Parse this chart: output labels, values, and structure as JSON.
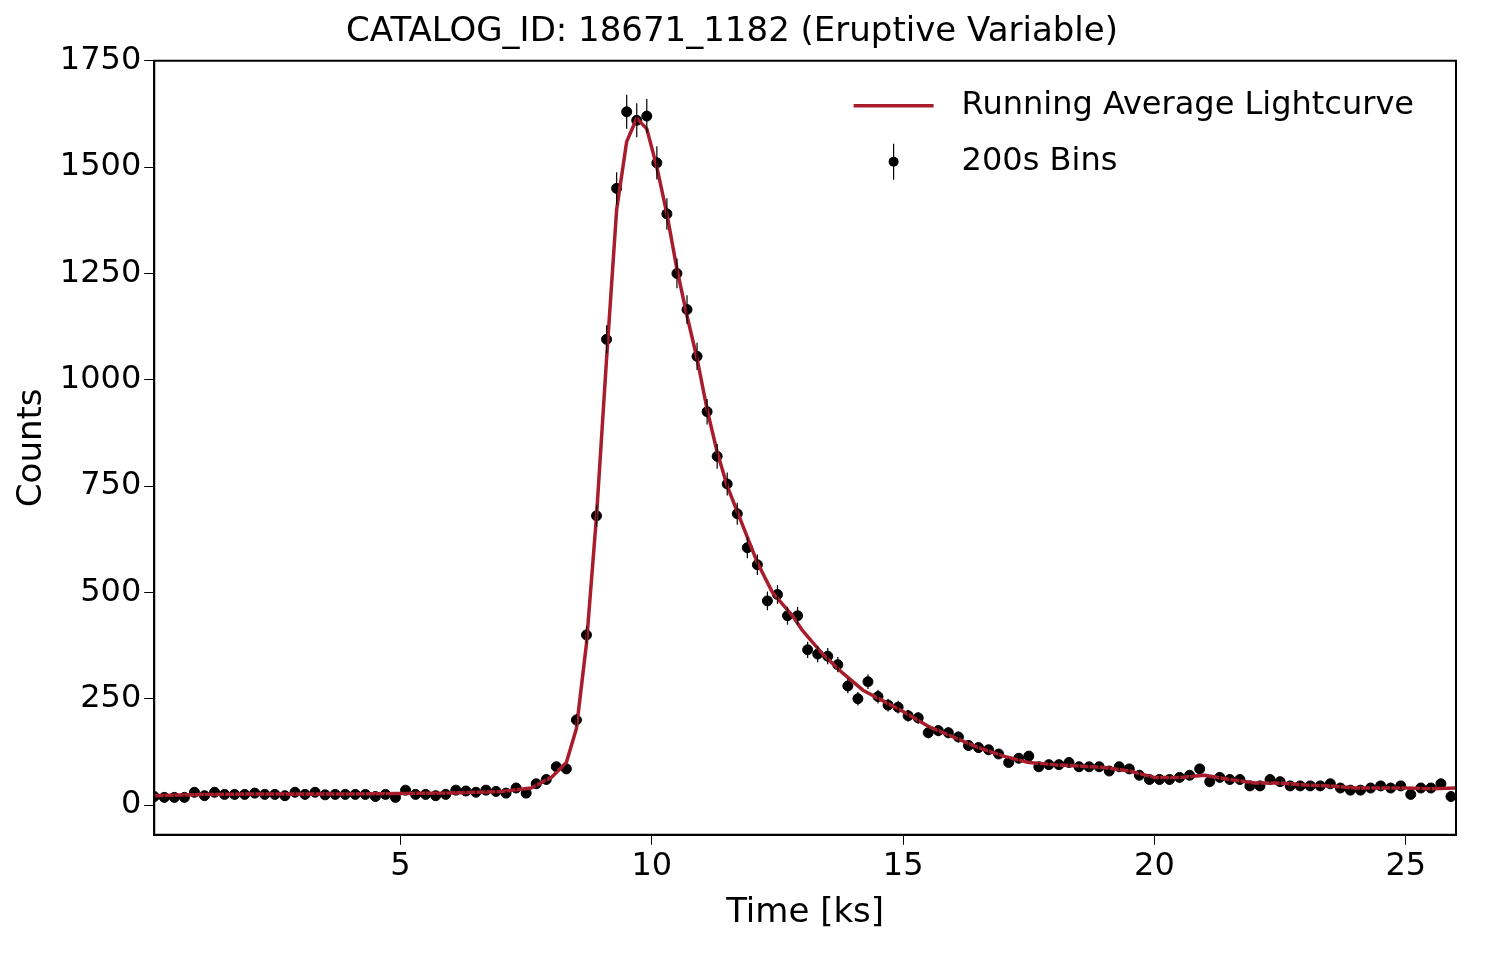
{
  "chart_data": {
    "type": "scatter",
    "title": "CATALOG_ID: 18671_1182 (Eruptive Variable)",
    "xlabel": "Time [ks]",
    "ylabel": "Counts",
    "xlim": [
      0.1,
      26
    ],
    "xticks": [
      5,
      10,
      15,
      20,
      25
    ],
    "ylim": [
      -70,
      1750
    ],
    "yticks": [
      0,
      250,
      500,
      750,
      1000,
      1250,
      1500,
      1750
    ],
    "grid": false,
    "legend": "top right",
    "series": [
      {
        "name": "Running Average Lightcurve",
        "type": "line",
        "color": "#a81c2c",
        "marker": "none",
        "line_style": "solid",
        "x": [
          0.1,
          1,
          2,
          3,
          4,
          5,
          6,
          7,
          7.6,
          8.0,
          8.3,
          8.5,
          8.7,
          8.9,
          9.1,
          9.3,
          9.5,
          9.7,
          9.9,
          10.1,
          10.3,
          10.5,
          10.7,
          10.9,
          11.1,
          11.3,
          11.5,
          11.8,
          12.1,
          12.4,
          12.8,
          13.0,
          13.4,
          13.8,
          14.2,
          14.6,
          15,
          15.5,
          16,
          16.5,
          17,
          17.5,
          18,
          18.5,
          19,
          19.5,
          20,
          20.5,
          21,
          21.5,
          22,
          22.5,
          23,
          23.5,
          24,
          24.5,
          25,
          25.5,
          26
        ],
        "values": [
          22,
          25,
          26,
          26,
          26,
          27,
          28,
          32,
          40,
          65,
          100,
          180,
          380,
          680,
          1050,
          1400,
          1560,
          1615,
          1590,
          1500,
          1390,
          1260,
          1150,
          1050,
          930,
          830,
          750,
          660,
          570,
          500,
          445,
          410,
          355,
          310,
          270,
          245,
          220,
          185,
          160,
          135,
          115,
          100,
          95,
          92,
          88,
          80,
          65,
          65,
          70,
          60,
          52,
          52,
          47,
          45,
          40,
          40,
          40,
          38,
          40
        ]
      },
      {
        "name": "200s Bins",
        "type": "scatter",
        "color": "#000000",
        "marker": "circle",
        "x": [
          0.1,
          0.3,
          0.5,
          0.7,
          0.9,
          1.1,
          1.3,
          1.5,
          1.7,
          1.9,
          2.1,
          2.3,
          2.5,
          2.7,
          2.9,
          3.1,
          3.3,
          3.5,
          3.7,
          3.9,
          4.1,
          4.3,
          4.5,
          4.7,
          4.9,
          5.1,
          5.3,
          5.5,
          5.7,
          5.9,
          6.1,
          6.3,
          6.5,
          6.7,
          6.9,
          7.1,
          7.3,
          7.5,
          7.7,
          7.9,
          8.1,
          8.3,
          8.5,
          8.7,
          8.9,
          9.1,
          9.3,
          9.5,
          9.7,
          9.9,
          10.1,
          10.3,
          10.5,
          10.7,
          10.9,
          11.1,
          11.3,
          11.5,
          11.7,
          11.9,
          12.1,
          12.3,
          12.5,
          12.7,
          12.9,
          13.1,
          13.3,
          13.5,
          13.7,
          13.9,
          14.1,
          14.3,
          14.5,
          14.7,
          14.9,
          15.1,
          15.3,
          15.5,
          15.7,
          15.9,
          16.1,
          16.3,
          16.5,
          16.7,
          16.9,
          17.1,
          17.3,
          17.5,
          17.7,
          17.9,
          18.1,
          18.3,
          18.5,
          18.7,
          18.9,
          19.1,
          19.3,
          19.5,
          19.7,
          19.9,
          20.1,
          20.3,
          20.5,
          20.7,
          20.9,
          21.1,
          21.3,
          21.5,
          21.7,
          21.9,
          22.1,
          22.3,
          22.5,
          22.7,
          22.9,
          23.1,
          23.3,
          23.5,
          23.7,
          23.9,
          24.1,
          24.3,
          24.5,
          24.7,
          24.9,
          25.1,
          25.3,
          25.5,
          25.7,
          25.9
        ],
        "values": [
          20,
          18,
          18,
          18,
          30,
          22,
          30,
          25,
          25,
          25,
          28,
          25,
          25,
          22,
          30,
          25,
          30,
          24,
          25,
          25,
          25,
          25,
          20,
          25,
          18,
          35,
          25,
          25,
          22,
          25,
          35,
          33,
          30,
          35,
          32,
          28,
          40,
          28,
          50,
          60,
          90,
          85,
          200,
          400,
          680,
          1095,
          1450,
          1630,
          1610,
          1620,
          1510,
          1390,
          1250,
          1165,
          1055,
          925,
          820,
          755,
          685,
          605,
          565,
          480,
          495,
          445,
          445,
          365,
          355,
          350,
          330,
          280,
          250,
          290,
          255,
          235,
          230,
          210,
          205,
          170,
          175,
          170,
          160,
          140,
          135,
          130,
          120,
          100,
          110,
          115,
          90,
          95,
          95,
          100,
          90,
          90,
          90,
          80,
          90,
          85,
          70,
          60,
          60,
          60,
          65,
          70,
          85,
          55,
          65,
          60,
          60,
          45,
          45,
          60,
          55,
          45,
          45,
          45,
          45,
          50,
          40,
          35,
          35,
          40,
          45,
          40,
          45,
          25,
          40,
          40,
          50,
          20
        ],
        "errors": [
          5,
          5,
          5,
          5,
          5,
          5,
          5,
          5,
          5,
          5,
          5,
          5,
          5,
          5,
          5,
          5,
          5,
          5,
          5,
          5,
          5,
          5,
          5,
          5,
          5,
          5,
          5,
          5,
          5,
          5,
          5,
          5,
          5,
          5,
          5,
          5,
          5,
          5,
          7,
          8,
          10,
          10,
          14,
          20,
          26,
          33,
          38,
          40,
          40,
          40,
          39,
          37,
          35,
          34,
          32,
          30,
          29,
          27,
          26,
          25,
          24,
          22,
          22,
          21,
          21,
          19,
          19,
          19,
          18,
          17,
          16,
          17,
          16,
          15,
          15,
          14,
          14,
          13,
          13,
          13,
          13,
          12,
          12,
          11,
          11,
          10,
          10,
          11,
          9,
          10,
          10,
          10,
          9,
          9,
          9,
          9,
          9,
          9,
          8,
          8,
          8,
          8,
          8,
          8,
          9,
          7,
          8,
          8,
          8,
          7,
          7,
          8,
          7,
          7,
          7,
          7,
          7,
          7,
          6,
          6,
          6,
          6,
          7,
          6,
          7,
          5,
          6,
          6,
          7,
          4
        ]
      }
    ]
  }
}
